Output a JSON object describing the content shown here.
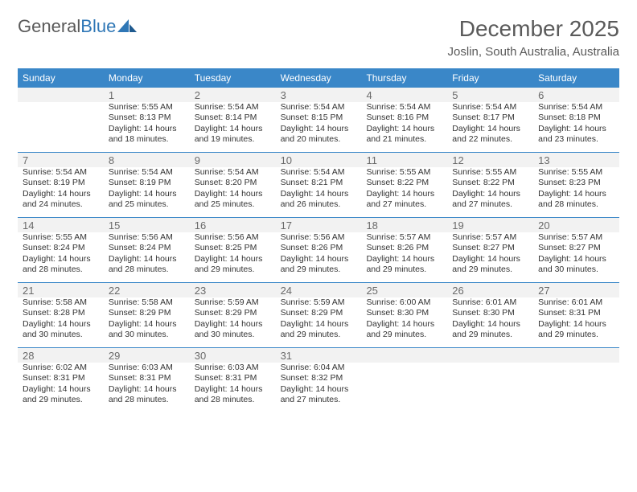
{
  "logo": {
    "text1": "General",
    "text2": "Blue"
  },
  "header": {
    "month": "December 2025",
    "location": "Joslin, South Australia, Australia"
  },
  "colors": {
    "header_bg": "#3a87c8",
    "header_text": "#ffffff",
    "shaded_bg": "#f2f2f2",
    "border": "#3a87c8",
    "text": "#333333",
    "daynum": "#6a6a6a",
    "logo_gray": "#5a5a5a",
    "logo_blue": "#2f77b6"
  },
  "dayNames": [
    "Sunday",
    "Monday",
    "Tuesday",
    "Wednesday",
    "Thursday",
    "Friday",
    "Saturday"
  ],
  "weeks": [
    [
      {
        "num": "",
        "sunrise": "",
        "sunset": "",
        "daylight": ""
      },
      {
        "num": "1",
        "sunrise": "Sunrise: 5:55 AM",
        "sunset": "Sunset: 8:13 PM",
        "daylight": "Daylight: 14 hours and 18 minutes."
      },
      {
        "num": "2",
        "sunrise": "Sunrise: 5:54 AM",
        "sunset": "Sunset: 8:14 PM",
        "daylight": "Daylight: 14 hours and 19 minutes."
      },
      {
        "num": "3",
        "sunrise": "Sunrise: 5:54 AM",
        "sunset": "Sunset: 8:15 PM",
        "daylight": "Daylight: 14 hours and 20 minutes."
      },
      {
        "num": "4",
        "sunrise": "Sunrise: 5:54 AM",
        "sunset": "Sunset: 8:16 PM",
        "daylight": "Daylight: 14 hours and 21 minutes."
      },
      {
        "num": "5",
        "sunrise": "Sunrise: 5:54 AM",
        "sunset": "Sunset: 8:17 PM",
        "daylight": "Daylight: 14 hours and 22 minutes."
      },
      {
        "num": "6",
        "sunrise": "Sunrise: 5:54 AM",
        "sunset": "Sunset: 8:18 PM",
        "daylight": "Daylight: 14 hours and 23 minutes."
      }
    ],
    [
      {
        "num": "7",
        "sunrise": "Sunrise: 5:54 AM",
        "sunset": "Sunset: 8:19 PM",
        "daylight": "Daylight: 14 hours and 24 minutes."
      },
      {
        "num": "8",
        "sunrise": "Sunrise: 5:54 AM",
        "sunset": "Sunset: 8:19 PM",
        "daylight": "Daylight: 14 hours and 25 minutes."
      },
      {
        "num": "9",
        "sunrise": "Sunrise: 5:54 AM",
        "sunset": "Sunset: 8:20 PM",
        "daylight": "Daylight: 14 hours and 25 minutes."
      },
      {
        "num": "10",
        "sunrise": "Sunrise: 5:54 AM",
        "sunset": "Sunset: 8:21 PM",
        "daylight": "Daylight: 14 hours and 26 minutes."
      },
      {
        "num": "11",
        "sunrise": "Sunrise: 5:55 AM",
        "sunset": "Sunset: 8:22 PM",
        "daylight": "Daylight: 14 hours and 27 minutes."
      },
      {
        "num": "12",
        "sunrise": "Sunrise: 5:55 AM",
        "sunset": "Sunset: 8:22 PM",
        "daylight": "Daylight: 14 hours and 27 minutes."
      },
      {
        "num": "13",
        "sunrise": "Sunrise: 5:55 AM",
        "sunset": "Sunset: 8:23 PM",
        "daylight": "Daylight: 14 hours and 28 minutes."
      }
    ],
    [
      {
        "num": "14",
        "sunrise": "Sunrise: 5:55 AM",
        "sunset": "Sunset: 8:24 PM",
        "daylight": "Daylight: 14 hours and 28 minutes."
      },
      {
        "num": "15",
        "sunrise": "Sunrise: 5:56 AM",
        "sunset": "Sunset: 8:24 PM",
        "daylight": "Daylight: 14 hours and 28 minutes."
      },
      {
        "num": "16",
        "sunrise": "Sunrise: 5:56 AM",
        "sunset": "Sunset: 8:25 PM",
        "daylight": "Daylight: 14 hours and 29 minutes."
      },
      {
        "num": "17",
        "sunrise": "Sunrise: 5:56 AM",
        "sunset": "Sunset: 8:26 PM",
        "daylight": "Daylight: 14 hours and 29 minutes."
      },
      {
        "num": "18",
        "sunrise": "Sunrise: 5:57 AM",
        "sunset": "Sunset: 8:26 PM",
        "daylight": "Daylight: 14 hours and 29 minutes."
      },
      {
        "num": "19",
        "sunrise": "Sunrise: 5:57 AM",
        "sunset": "Sunset: 8:27 PM",
        "daylight": "Daylight: 14 hours and 29 minutes."
      },
      {
        "num": "20",
        "sunrise": "Sunrise: 5:57 AM",
        "sunset": "Sunset: 8:27 PM",
        "daylight": "Daylight: 14 hours and 30 minutes."
      }
    ],
    [
      {
        "num": "21",
        "sunrise": "Sunrise: 5:58 AM",
        "sunset": "Sunset: 8:28 PM",
        "daylight": "Daylight: 14 hours and 30 minutes."
      },
      {
        "num": "22",
        "sunrise": "Sunrise: 5:58 AM",
        "sunset": "Sunset: 8:29 PM",
        "daylight": "Daylight: 14 hours and 30 minutes."
      },
      {
        "num": "23",
        "sunrise": "Sunrise: 5:59 AM",
        "sunset": "Sunset: 8:29 PM",
        "daylight": "Daylight: 14 hours and 30 minutes."
      },
      {
        "num": "24",
        "sunrise": "Sunrise: 5:59 AM",
        "sunset": "Sunset: 8:29 PM",
        "daylight": "Daylight: 14 hours and 29 minutes."
      },
      {
        "num": "25",
        "sunrise": "Sunrise: 6:00 AM",
        "sunset": "Sunset: 8:30 PM",
        "daylight": "Daylight: 14 hours and 29 minutes."
      },
      {
        "num": "26",
        "sunrise": "Sunrise: 6:01 AM",
        "sunset": "Sunset: 8:30 PM",
        "daylight": "Daylight: 14 hours and 29 minutes."
      },
      {
        "num": "27",
        "sunrise": "Sunrise: 6:01 AM",
        "sunset": "Sunset: 8:31 PM",
        "daylight": "Daylight: 14 hours and 29 minutes."
      }
    ],
    [
      {
        "num": "28",
        "sunrise": "Sunrise: 6:02 AM",
        "sunset": "Sunset: 8:31 PM",
        "daylight": "Daylight: 14 hours and 29 minutes."
      },
      {
        "num": "29",
        "sunrise": "Sunrise: 6:03 AM",
        "sunset": "Sunset: 8:31 PM",
        "daylight": "Daylight: 14 hours and 28 minutes."
      },
      {
        "num": "30",
        "sunrise": "Sunrise: 6:03 AM",
        "sunset": "Sunset: 8:31 PM",
        "daylight": "Daylight: 14 hours and 28 minutes."
      },
      {
        "num": "31",
        "sunrise": "Sunrise: 6:04 AM",
        "sunset": "Sunset: 8:32 PM",
        "daylight": "Daylight: 14 hours and 27 minutes."
      },
      {
        "num": "",
        "sunrise": "",
        "sunset": "",
        "daylight": ""
      },
      {
        "num": "",
        "sunrise": "",
        "sunset": "",
        "daylight": ""
      },
      {
        "num": "",
        "sunrise": "",
        "sunset": "",
        "daylight": ""
      }
    ]
  ]
}
